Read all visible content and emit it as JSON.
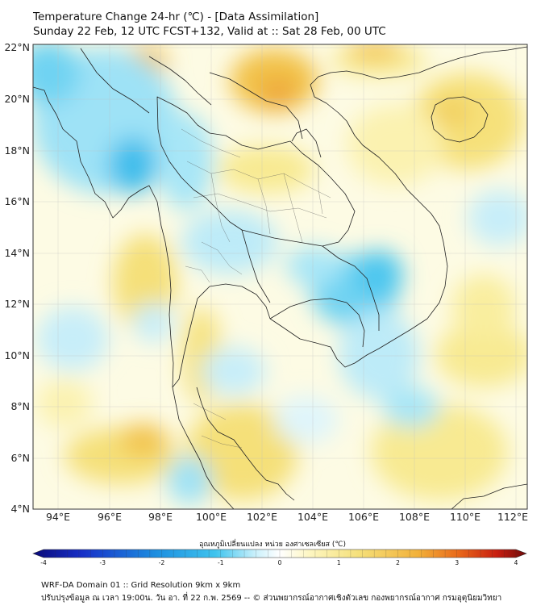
{
  "header": {
    "title": "Temperature Change 24-hr (℃) - [Data Assimilation]",
    "subtitle": "Sunday 22 Feb, 12 UTC FCST+132, Valid at :: Sat 28 Feb, 00 UTC"
  },
  "map": {
    "lat_labels": [
      "22°N",
      "20°N",
      "18°N",
      "16°N",
      "14°N",
      "12°N",
      "10°N",
      "8°N",
      "6°N",
      "4°N"
    ],
    "lon_labels": [
      "94°E",
      "96°E",
      "98°E",
      "100°E",
      "102°E",
      "104°E",
      "106°E",
      "108°E",
      "110°E",
      "112°E"
    ]
  },
  "colorbar": {
    "label": "อุณหภูมิเปลี่ยนแปลง หน่วย องศาเซลเซียส (℃)",
    "ticks": [
      "-4",
      "-3",
      "-2",
      "-1",
      "0",
      "1",
      "2",
      "3",
      "4"
    ],
    "range": [
      -4,
      4
    ],
    "colors": [
      "#0a0a7a",
      "#1730c8",
      "#1d8fe0",
      "#3fc4ee",
      "#c9f0fb",
      "#ffffff",
      "#fdf6c2",
      "#f5e07a",
      "#f2b13a",
      "#e96a1a",
      "#c81e10",
      "#6e0a0a"
    ]
  },
  "footer": {
    "line1": "WRF-DA Domain 01 :: Grid Resolution 9km x 9km",
    "line2": "ปรับปรุงข้อมูล ณ เวลา 19:00น. วัน อา. ที่ 22 ก.พ. 2569 -- © ส่วนพยากรณ์อากาศเชิงตัวเลข กองพยากรณ์อากาศ กรมอุตุนิยมวิทยา"
  }
}
